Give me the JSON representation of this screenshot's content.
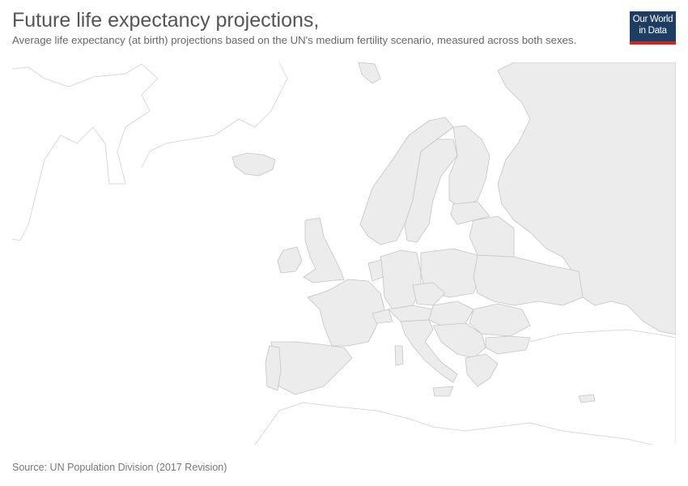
{
  "chart": {
    "title": "Future life expectancy projections,",
    "subtitle": "Average life expectancy (at birth) projections based on the UN's medium fertility scenario, measured across both sexes.",
    "source": "Source: UN Population Division (2017 Revision)"
  },
  "logo": {
    "line1": "Our World",
    "line2": "in Data",
    "background": "#1d3d63",
    "accent": "#ce261e"
  },
  "map": {
    "region": "Europe",
    "fill_no_data": "#ececec",
    "border_color": "#c4c4c4"
  }
}
